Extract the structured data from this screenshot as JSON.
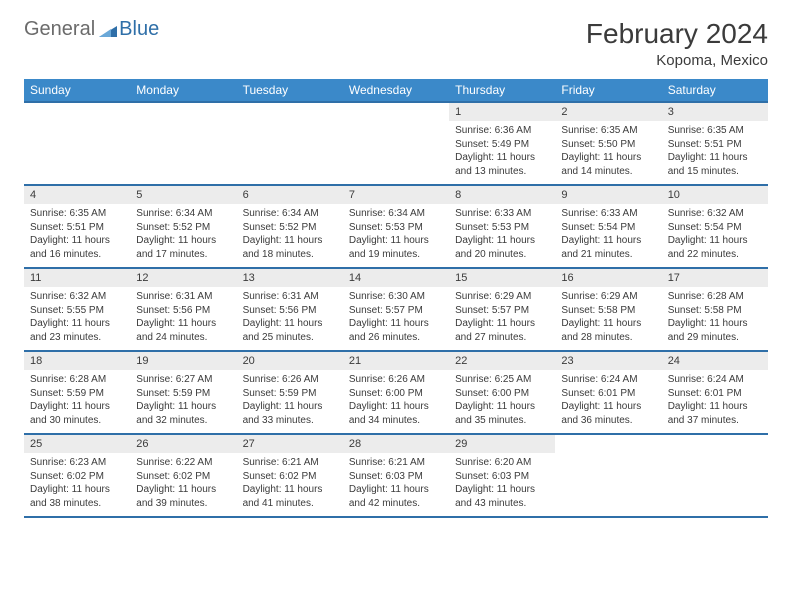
{
  "brand": {
    "text1": "General",
    "text2": "Blue"
  },
  "title": "February 2024",
  "location": "Kopoma, Mexico",
  "colors": {
    "header_bg": "#3b89c9",
    "header_text": "#ffffff",
    "ruler": "#2f6fa8",
    "daynum_bg": "#ececec",
    "body_text": "#3b3b3b",
    "logo_gray": "#6b6b6b",
    "logo_blue": "#2f6fa8"
  },
  "day_headers": [
    "Sunday",
    "Monday",
    "Tuesday",
    "Wednesday",
    "Thursday",
    "Friday",
    "Saturday"
  ],
  "weeks": [
    {
      "nums": [
        "",
        "",
        "",
        "",
        "1",
        "2",
        "3"
      ],
      "cells": [
        null,
        null,
        null,
        null,
        {
          "sunrise": "6:36 AM",
          "sunset": "5:49 PM",
          "daylight": "11 hours and 13 minutes."
        },
        {
          "sunrise": "6:35 AM",
          "sunset": "5:50 PM",
          "daylight": "11 hours and 14 minutes."
        },
        {
          "sunrise": "6:35 AM",
          "sunset": "5:51 PM",
          "daylight": "11 hours and 15 minutes."
        }
      ]
    },
    {
      "nums": [
        "4",
        "5",
        "6",
        "7",
        "8",
        "9",
        "10"
      ],
      "cells": [
        {
          "sunrise": "6:35 AM",
          "sunset": "5:51 PM",
          "daylight": "11 hours and 16 minutes."
        },
        {
          "sunrise": "6:34 AM",
          "sunset": "5:52 PM",
          "daylight": "11 hours and 17 minutes."
        },
        {
          "sunrise": "6:34 AM",
          "sunset": "5:52 PM",
          "daylight": "11 hours and 18 minutes."
        },
        {
          "sunrise": "6:34 AM",
          "sunset": "5:53 PM",
          "daylight": "11 hours and 19 minutes."
        },
        {
          "sunrise": "6:33 AM",
          "sunset": "5:53 PM",
          "daylight": "11 hours and 20 minutes."
        },
        {
          "sunrise": "6:33 AM",
          "sunset": "5:54 PM",
          "daylight": "11 hours and 21 minutes."
        },
        {
          "sunrise": "6:32 AM",
          "sunset": "5:54 PM",
          "daylight": "11 hours and 22 minutes."
        }
      ]
    },
    {
      "nums": [
        "11",
        "12",
        "13",
        "14",
        "15",
        "16",
        "17"
      ],
      "cells": [
        {
          "sunrise": "6:32 AM",
          "sunset": "5:55 PM",
          "daylight": "11 hours and 23 minutes."
        },
        {
          "sunrise": "6:31 AM",
          "sunset": "5:56 PM",
          "daylight": "11 hours and 24 minutes."
        },
        {
          "sunrise": "6:31 AM",
          "sunset": "5:56 PM",
          "daylight": "11 hours and 25 minutes."
        },
        {
          "sunrise": "6:30 AM",
          "sunset": "5:57 PM",
          "daylight": "11 hours and 26 minutes."
        },
        {
          "sunrise": "6:29 AM",
          "sunset": "5:57 PM",
          "daylight": "11 hours and 27 minutes."
        },
        {
          "sunrise": "6:29 AM",
          "sunset": "5:58 PM",
          "daylight": "11 hours and 28 minutes."
        },
        {
          "sunrise": "6:28 AM",
          "sunset": "5:58 PM",
          "daylight": "11 hours and 29 minutes."
        }
      ]
    },
    {
      "nums": [
        "18",
        "19",
        "20",
        "21",
        "22",
        "23",
        "24"
      ],
      "cells": [
        {
          "sunrise": "6:28 AM",
          "sunset": "5:59 PM",
          "daylight": "11 hours and 30 minutes."
        },
        {
          "sunrise": "6:27 AM",
          "sunset": "5:59 PM",
          "daylight": "11 hours and 32 minutes."
        },
        {
          "sunrise": "6:26 AM",
          "sunset": "5:59 PM",
          "daylight": "11 hours and 33 minutes."
        },
        {
          "sunrise": "6:26 AM",
          "sunset": "6:00 PM",
          "daylight": "11 hours and 34 minutes."
        },
        {
          "sunrise": "6:25 AM",
          "sunset": "6:00 PM",
          "daylight": "11 hours and 35 minutes."
        },
        {
          "sunrise": "6:24 AM",
          "sunset": "6:01 PM",
          "daylight": "11 hours and 36 minutes."
        },
        {
          "sunrise": "6:24 AM",
          "sunset": "6:01 PM",
          "daylight": "11 hours and 37 minutes."
        }
      ]
    },
    {
      "nums": [
        "25",
        "26",
        "27",
        "28",
        "29",
        "",
        ""
      ],
      "cells": [
        {
          "sunrise": "6:23 AM",
          "sunset": "6:02 PM",
          "daylight": "11 hours and 38 minutes."
        },
        {
          "sunrise": "6:22 AM",
          "sunset": "6:02 PM",
          "daylight": "11 hours and 39 minutes."
        },
        {
          "sunrise": "6:21 AM",
          "sunset": "6:02 PM",
          "daylight": "11 hours and 41 minutes."
        },
        {
          "sunrise": "6:21 AM",
          "sunset": "6:03 PM",
          "daylight": "11 hours and 42 minutes."
        },
        {
          "sunrise": "6:20 AM",
          "sunset": "6:03 PM",
          "daylight": "11 hours and 43 minutes."
        },
        null,
        null
      ]
    }
  ],
  "labels": {
    "sunrise": "Sunrise: ",
    "sunset": "Sunset: ",
    "daylight": "Daylight: "
  }
}
